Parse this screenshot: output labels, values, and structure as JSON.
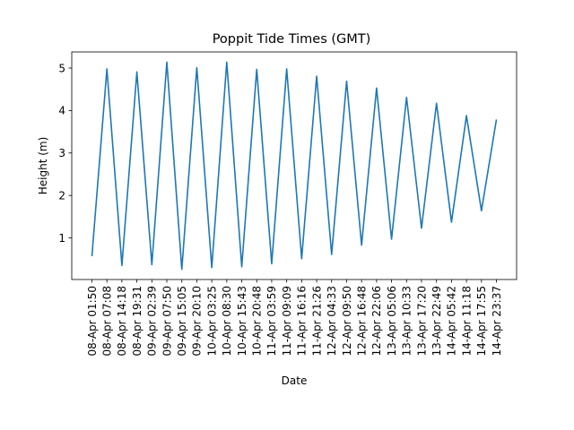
{
  "chart_data": {
    "type": "line",
    "title": "Poppit Tide Times (GMT)",
    "xlabel": "Date",
    "ylabel": "Height (m)",
    "x": [
      "08-Apr 01:50",
      "08-Apr 07:08",
      "08-Apr 14:18",
      "08-Apr 19:31",
      "09-Apr 02:39",
      "09-Apr 07:50",
      "09-Apr 15:05",
      "09-Apr 20:10",
      "10-Apr 03:25",
      "10-Apr 08:30",
      "10-Apr 15:43",
      "10-Apr 20:48",
      "11-Apr 03:59",
      "11-Apr 09:09",
      "11-Apr 16:16",
      "11-Apr 21:26",
      "12-Apr 04:33",
      "12-Apr 09:50",
      "12-Apr 16:48",
      "12-Apr 22:06",
      "13-Apr 05:06",
      "13-Apr 10:33",
      "13-Apr 17:20",
      "13-Apr 22:49",
      "14-Apr 05:42",
      "14-Apr 11:18",
      "14-Apr 17:55",
      "14-Apr 23:37"
    ],
    "series": [
      {
        "values": [
          0.57,
          4.98,
          0.35,
          4.91,
          0.37,
          5.14,
          0.26,
          5.01,
          0.3,
          5.14,
          0.32,
          4.97,
          0.39,
          4.98,
          0.51,
          4.81,
          0.61,
          4.69,
          0.83,
          4.53,
          0.97,
          4.31,
          1.23,
          4.17,
          1.37,
          3.88,
          1.64,
          3.79
        ]
      }
    ],
    "ylim": [
      0.02,
      5.38
    ],
    "yticks": [
      1,
      2,
      3,
      4,
      5
    ],
    "grid": false,
    "legend": "none",
    "colors": {
      "line": "#1f77b4",
      "axes": "#000000"
    }
  }
}
